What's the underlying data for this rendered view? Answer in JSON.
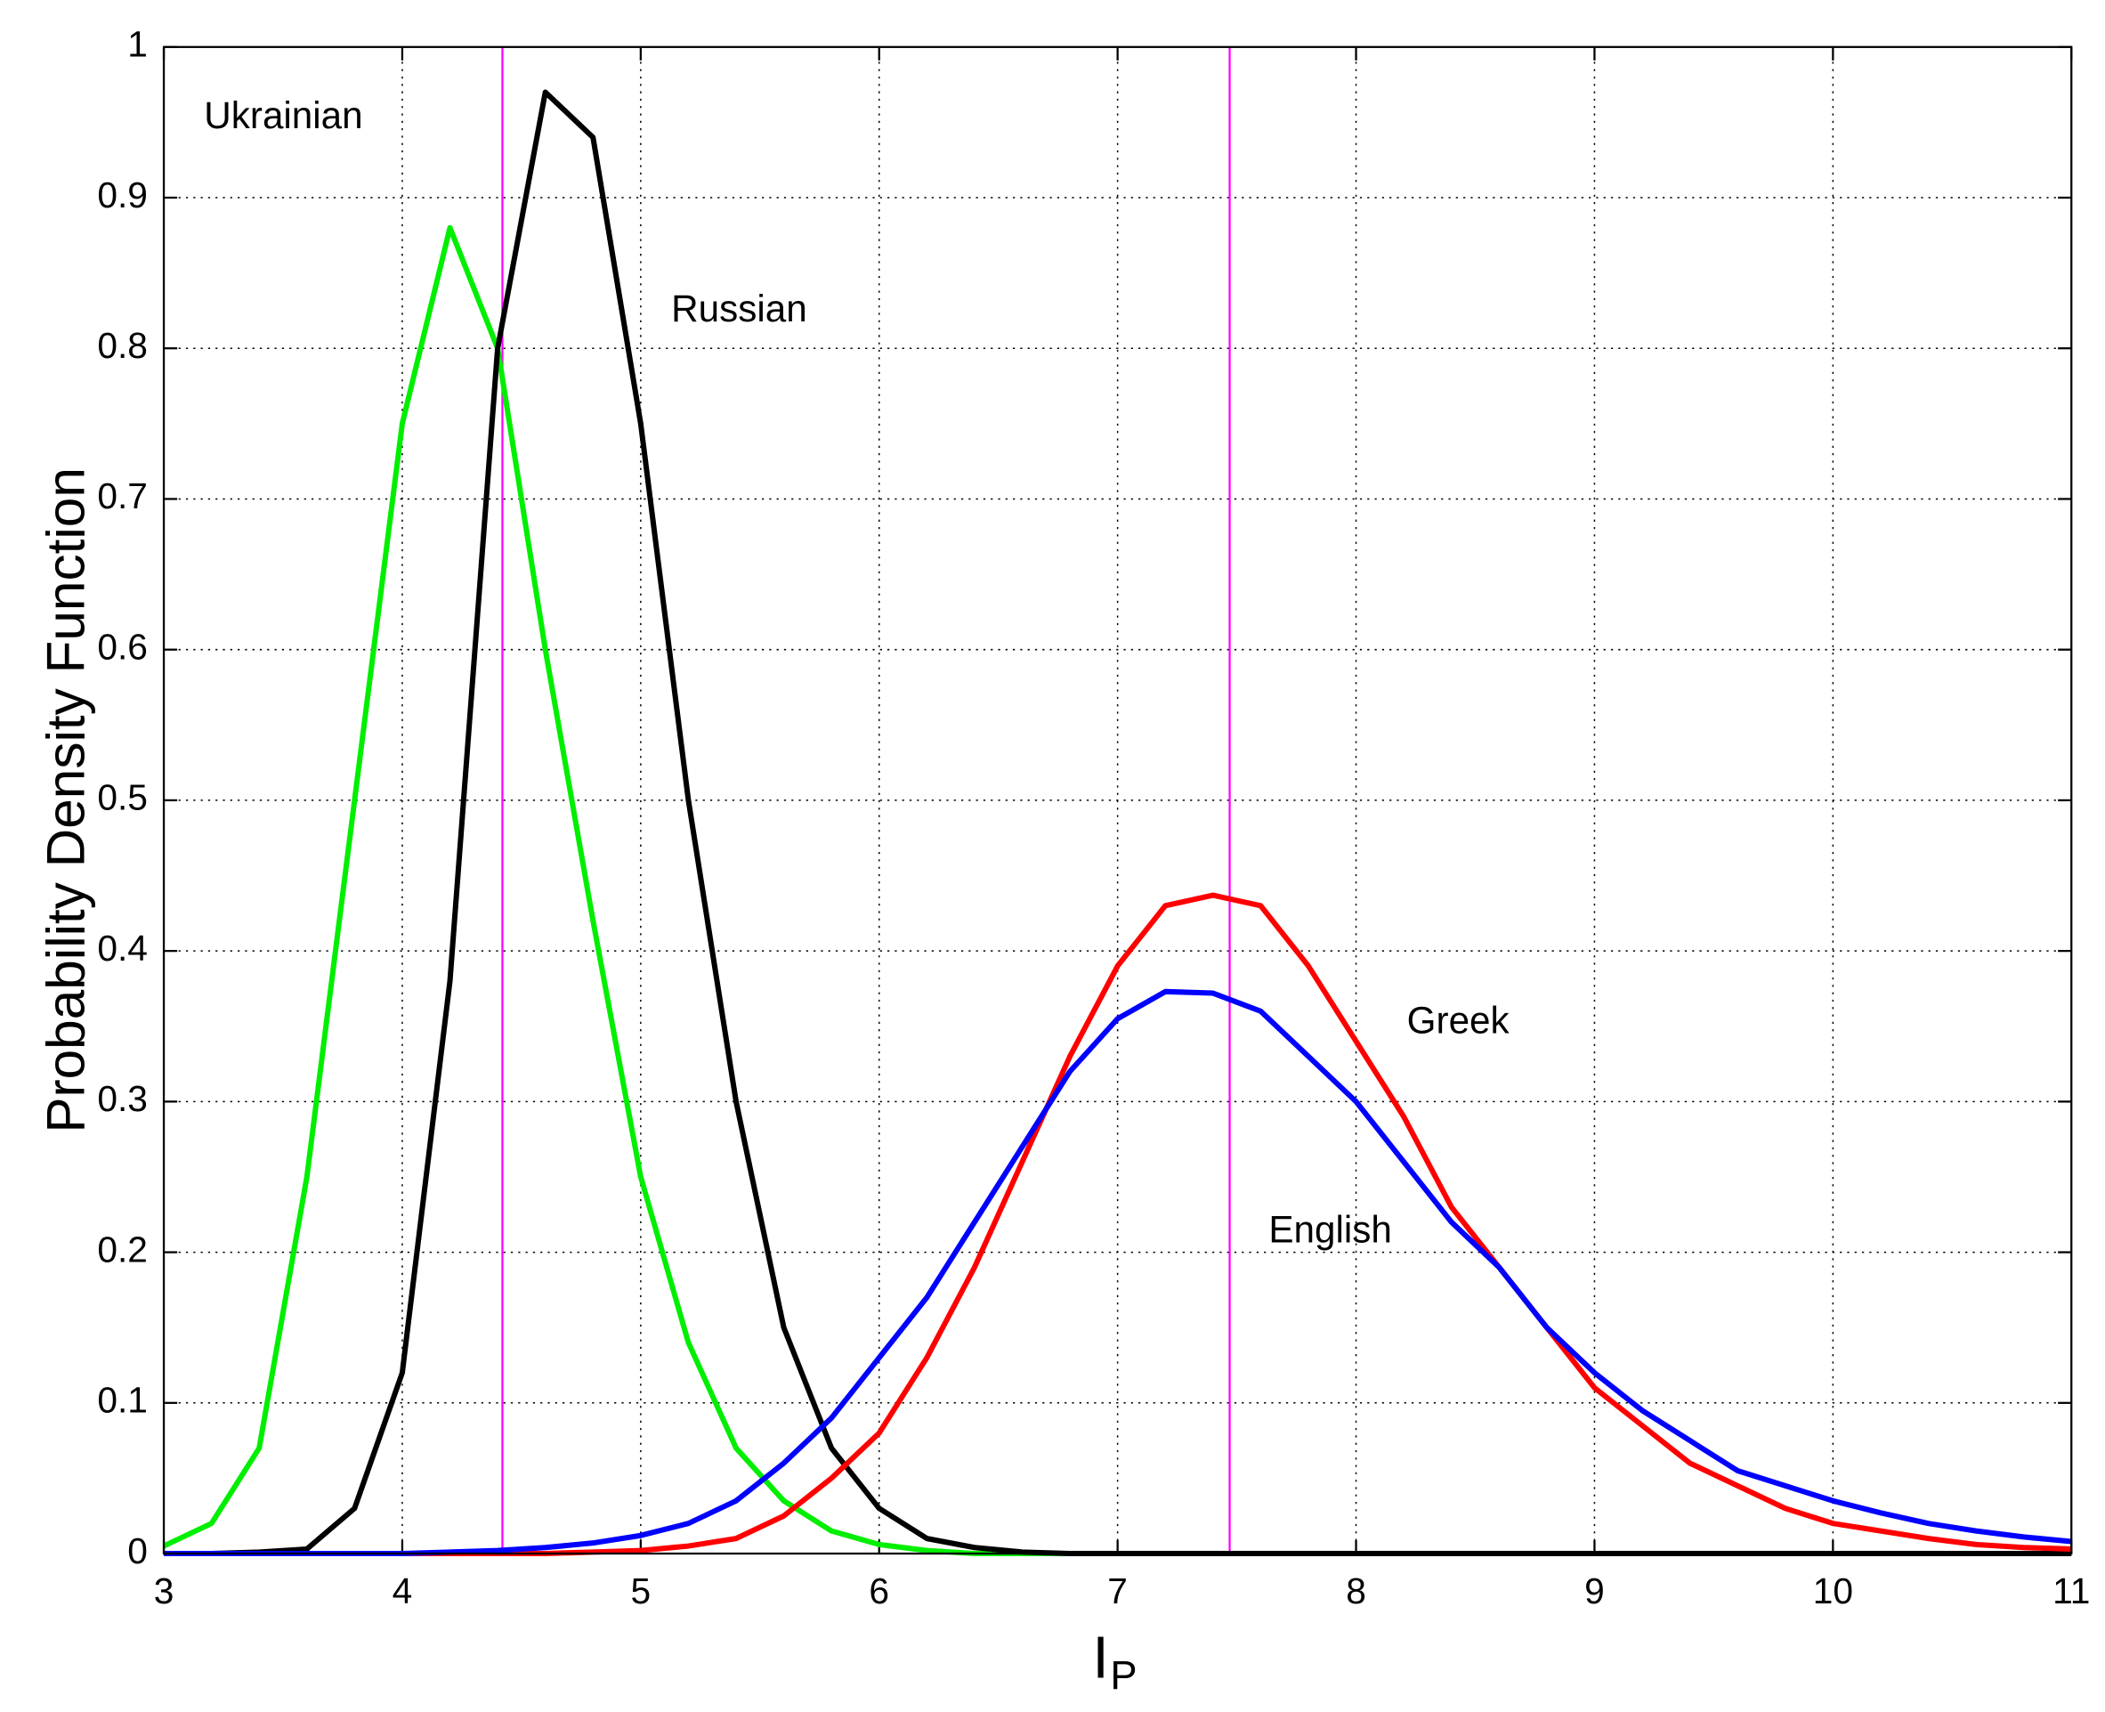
{
  "chart_data": {
    "type": "line",
    "ylabel": "Probability Density Function",
    "xlabel": "I",
    "xlabel_subscript": "P",
    "x": [
      3.0,
      3.2,
      3.4,
      3.6,
      3.8,
      4.0,
      4.2,
      4.4,
      4.6,
      4.8,
      5.0,
      5.2,
      5.4,
      5.6,
      5.8,
      6.0,
      6.2,
      6.4,
      6.6,
      6.8,
      7.0,
      7.2,
      7.4,
      7.6,
      7.8,
      8.0,
      8.2,
      8.4,
      8.6,
      8.8,
      9.0,
      9.2,
      9.4,
      9.6,
      9.8,
      10.0,
      10.2,
      10.4,
      10.6,
      10.8,
      11.0
    ],
    "series": [
      {
        "name": "Ukrainian",
        "color": "#00ee00",
        "values": [
          0.005,
          0.02,
          0.07,
          0.25,
          0.5,
          0.75,
          0.88,
          0.8,
          0.6,
          0.42,
          0.25,
          0.14,
          0.07,
          0.035,
          0.015,
          0.006,
          0.002,
          0,
          0,
          0,
          0,
          0,
          0,
          0,
          0,
          0,
          0,
          0,
          0,
          0,
          0,
          0,
          0,
          0,
          0,
          0,
          0,
          0,
          0,
          0,
          0
        ]
      },
      {
        "name": "Russian",
        "color": "#000000",
        "values": [
          0,
          0,
          0.001,
          0.003,
          0.03,
          0.12,
          0.38,
          0.8,
          0.97,
          0.94,
          0.75,
          0.5,
          0.3,
          0.15,
          0.07,
          0.03,
          0.01,
          0.004,
          0.001,
          0,
          0,
          0,
          0,
          0,
          0,
          0,
          0,
          0,
          0,
          0,
          0,
          0,
          0,
          0,
          0,
          0,
          0,
          0,
          0,
          0,
          0
        ]
      },
      {
        "name": "Greek",
        "color": "#ff0000",
        "values": [
          0,
          0,
          0,
          0,
          0,
          0,
          0,
          0,
          0,
          0.001,
          0.002,
          0.005,
          0.01,
          0.025,
          0.05,
          0.08,
          0.13,
          0.19,
          0.26,
          0.33,
          0.39,
          0.43,
          0.437,
          0.43,
          0.39,
          0.34,
          0.29,
          0.23,
          0.19,
          0.15,
          0.11,
          0.085,
          0.06,
          0.045,
          0.03,
          0.02,
          0.015,
          0.01,
          0.006,
          0.004,
          0.003
        ]
      },
      {
        "name": "English",
        "color": "#0000ff",
        "values": [
          0,
          0,
          0,
          0,
          0,
          0,
          0.001,
          0.002,
          0.004,
          0.007,
          0.012,
          0.02,
          0.035,
          0.06,
          0.09,
          0.13,
          0.17,
          0.22,
          0.27,
          0.32,
          0.355,
          0.373,
          0.372,
          0.36,
          0.33,
          0.3,
          0.26,
          0.22,
          0.19,
          0.15,
          0.12,
          0.095,
          0.075,
          0.055,
          0.045,
          0.035,
          0.027,
          0.02,
          0.015,
          0.011,
          0.008
        ]
      }
    ],
    "vlines": [
      4.42,
      7.47
    ],
    "vline_color": "#ff00ff",
    "xlim": [
      3,
      11
    ],
    "ylim": [
      0,
      1
    ],
    "xticks": [
      3,
      4,
      5,
      6,
      7,
      8,
      9,
      10,
      11
    ],
    "yticks": [
      0,
      0.1,
      0.2,
      0.3,
      0.4,
      0.5,
      0.6,
      0.7,
      0.8,
      0.9,
      1
    ],
    "grid": true
  }
}
